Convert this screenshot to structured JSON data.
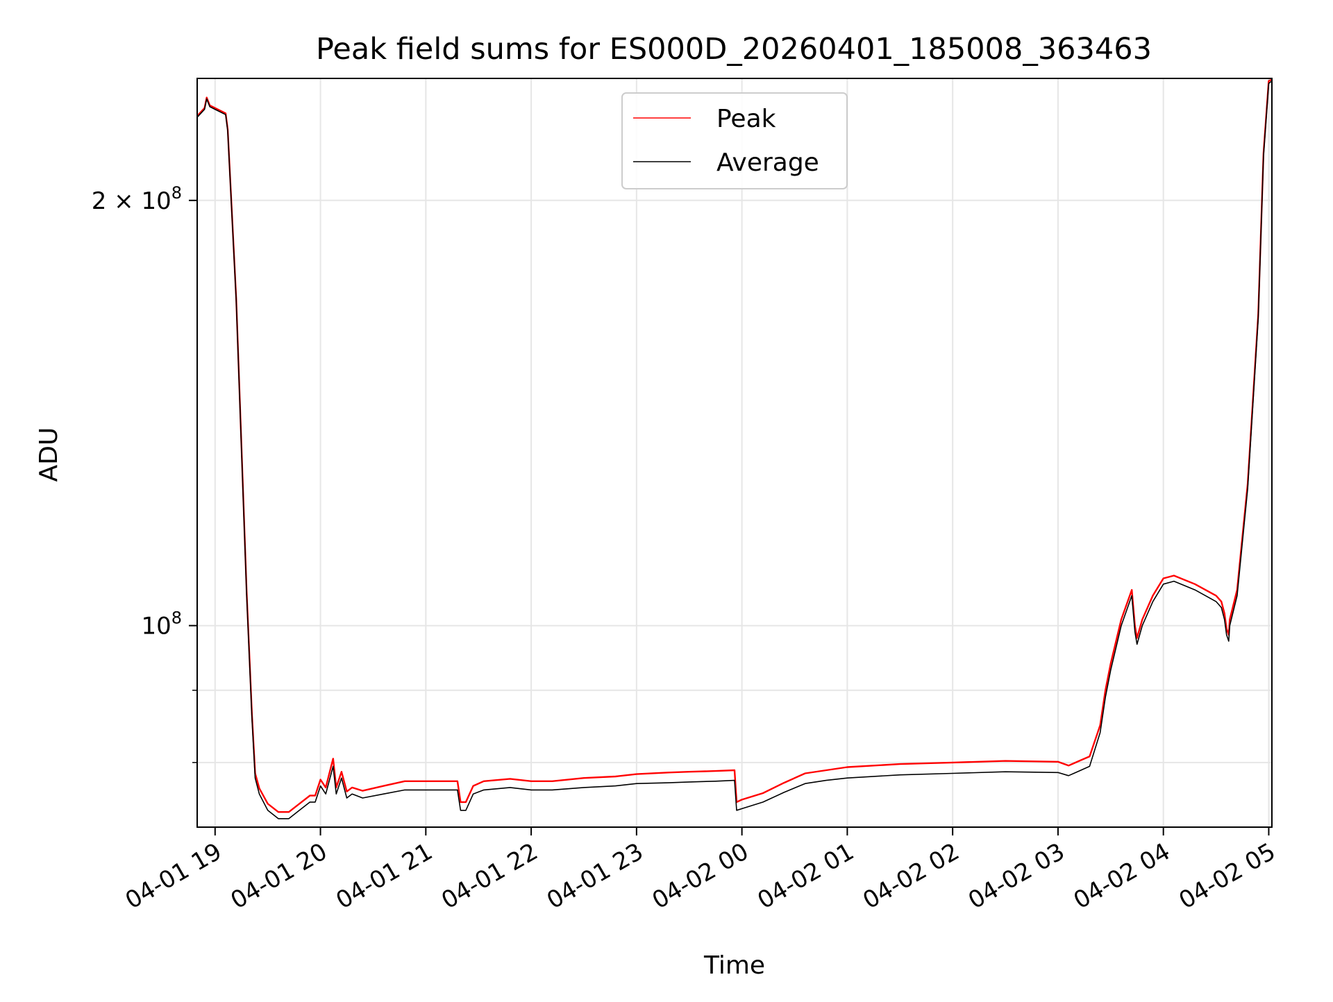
{
  "chart_data": {
    "type": "line",
    "title": "Peak field sums for ES000D_20260401_185008_363463",
    "xlabel": "Time",
    "ylabel": "ADU",
    "x_unit": "hours since 04-01 19:00",
    "xlim": [
      -0.17,
      10.03
    ],
    "ylim": [
      72000000,
      244000000
    ],
    "y_scale": "log",
    "grid": true,
    "legend": {
      "location": "top-center",
      "entries": [
        "Peak",
        "Average"
      ]
    },
    "x_ticks": [
      {
        "value": 0,
        "label": "04-01 19"
      },
      {
        "value": 1,
        "label": "04-01 20"
      },
      {
        "value": 2,
        "label": "04-01 21"
      },
      {
        "value": 3,
        "label": "04-01 22"
      },
      {
        "value": 4,
        "label": "04-01 23"
      },
      {
        "value": 5,
        "label": "04-02 00"
      },
      {
        "value": 6,
        "label": "04-02 01"
      },
      {
        "value": 7,
        "label": "04-02 02"
      },
      {
        "value": 8,
        "label": "04-02 03"
      },
      {
        "value": 9,
        "label": "04-02 04"
      },
      {
        "value": 10,
        "label": "04-02 05"
      }
    ],
    "y_major_ticks": [
      {
        "value": 100000000,
        "base": "10",
        "exp": "8",
        "prefix": ""
      },
      {
        "value": 200000000,
        "base": "10",
        "exp": "8",
        "prefix": "2 × "
      }
    ],
    "y_minor_ticks": [
      80000000,
      90000000
    ],
    "series": [
      {
        "name": "Average",
        "color": "#000000",
        "x": [
          -0.17,
          -0.1,
          -0.08,
          -0.05,
          0.0,
          0.1,
          0.12,
          0.2,
          0.3,
          0.35,
          0.38,
          0.42,
          0.5,
          0.6,
          0.7,
          0.8,
          0.9,
          0.95,
          1.0,
          1.05,
          1.12,
          1.15,
          1.2,
          1.25,
          1.3,
          1.4,
          1.6,
          1.8,
          2.0,
          2.3,
          2.33,
          2.38,
          2.45,
          2.55,
          2.8,
          3.0,
          3.2,
          3.5,
          3.8,
          4.0,
          4.3,
          4.5,
          4.75,
          4.93,
          4.95,
          5.0,
          5.2,
          5.4,
          5.6,
          5.8,
          6.0,
          6.5,
          7.0,
          7.5,
          8.0,
          8.1,
          8.15,
          8.2,
          8.3,
          8.4,
          8.45,
          8.5,
          8.6,
          8.7,
          8.73,
          8.75,
          8.8,
          8.9,
          9.0,
          9.1,
          9.3,
          9.5,
          9.55,
          9.58,
          9.6,
          9.62,
          9.63,
          9.7,
          9.8,
          9.9,
          9.95,
          10.0,
          10.03
        ],
        "y": [
          229000000,
          232000000,
          236000000,
          233000000,
          232000000,
          230000000,
          224000000,
          170000000,
          105000000,
          86000000,
          78000000,
          76000000,
          74000000,
          73000000,
          73000000,
          74000000,
          75000000,
          75000000,
          77000000,
          76000000,
          79500000,
          76000000,
          78000000,
          75500000,
          76000000,
          75500000,
          76000000,
          76500000,
          76500000,
          76500000,
          74000000,
          74000000,
          76000000,
          76500000,
          76800000,
          76500000,
          76500000,
          76800000,
          77000000,
          77300000,
          77400000,
          77500000,
          77600000,
          77700000,
          74000000,
          74200000,
          75000000,
          76200000,
          77300000,
          77700000,
          78000000,
          78400000,
          78600000,
          78800000,
          78700000,
          78300000,
          78600000,
          78900000,
          79500000,
          84000000,
          89000000,
          93000000,
          100000000,
          105000000,
          99000000,
          97000000,
          100000000,
          104000000,
          107000000,
          107500000,
          106000000,
          104000000,
          103000000,
          101000000,
          98500000,
          97500000,
          100000000,
          105000000,
          125000000,
          165000000,
          215000000,
          242000000,
          243000000
        ]
      },
      {
        "name": "Peak",
        "color": "#ff0000",
        "x": [
          -0.17,
          -0.1,
          -0.08,
          -0.05,
          0.0,
          0.1,
          0.12,
          0.2,
          0.3,
          0.35,
          0.38,
          0.42,
          0.5,
          0.6,
          0.7,
          0.8,
          0.9,
          0.95,
          1.0,
          1.05,
          1.12,
          1.15,
          1.2,
          1.25,
          1.3,
          1.4,
          1.6,
          1.8,
          2.0,
          2.3,
          2.33,
          2.38,
          2.45,
          2.55,
          2.8,
          3.0,
          3.2,
          3.5,
          3.8,
          4.0,
          4.3,
          4.5,
          4.75,
          4.93,
          4.95,
          5.0,
          5.2,
          5.4,
          5.6,
          5.8,
          6.0,
          6.5,
          7.0,
          7.5,
          8.0,
          8.1,
          8.15,
          8.2,
          8.3,
          8.4,
          8.45,
          8.5,
          8.6,
          8.7,
          8.73,
          8.75,
          8.8,
          8.9,
          9.0,
          9.1,
          9.3,
          9.5,
          9.55,
          9.58,
          9.6,
          9.62,
          9.63,
          9.7,
          9.8,
          9.9,
          9.95,
          10.0,
          10.03
        ],
        "y": [
          229500000,
          232500000,
          236500000,
          233500000,
          232500000,
          230500000,
          224500000,
          170500000,
          105500000,
          86500000,
          78600000,
          76700000,
          74800000,
          73800000,
          73800000,
          74800000,
          75800000,
          75800000,
          77800000,
          76800000,
          80500000,
          76800000,
          78800000,
          76300000,
          76800000,
          76400000,
          77000000,
          77600000,
          77600000,
          77600000,
          75000000,
          75000000,
          77000000,
          77600000,
          77900000,
          77600000,
          77600000,
          78000000,
          78200000,
          78500000,
          78700000,
          78800000,
          78900000,
          79000000,
          75000000,
          75300000,
          76100000,
          77400000,
          78600000,
          79000000,
          79400000,
          79800000,
          80000000,
          80200000,
          80100000,
          79600000,
          79900000,
          80200000,
          80800000,
          85000000,
          90000000,
          94000000,
          101000000,
          106000000,
          100000000,
          98000000,
          101000000,
          105000000,
          108000000,
          108500000,
          107000000,
          105000000,
          104000000,
          102000000,
          99500000,
          98500000,
          101000000,
          106000000,
          126000000,
          166000000,
          216000000,
          243000000,
          243500000
        ]
      }
    ]
  }
}
